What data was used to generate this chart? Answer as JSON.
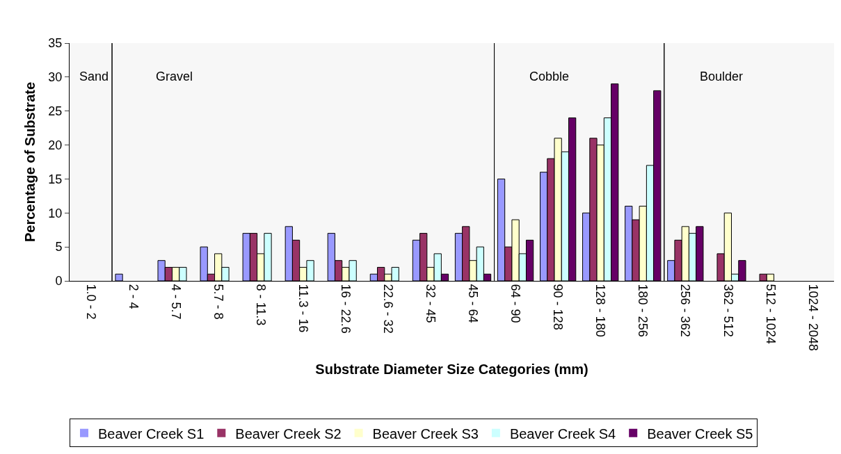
{
  "chart_data": {
    "type": "bar",
    "xlabel": "Substrate Diameter Size Categories (mm)",
    "ylabel": "Percentage of Substrate",
    "categories": [
      "1.0 - 2",
      "2 - 4",
      "4 - 5.7",
      "5.7 - 8",
      "8 - 11.3",
      "11.3 - 16",
      "16 - 22.6",
      "22.6 - 32",
      "32 - 45",
      "45 - 64",
      "64 - 90",
      "90 - 128",
      "128 - 180",
      "180 - 256",
      "256 - 362",
      "362 - 512",
      "512 - 1024",
      "1024 - 2048"
    ],
    "series": [
      {
        "name": "Beaver Creek S1",
        "color": "#9999ff",
        "values": [
          0,
          1,
          3,
          5,
          7,
          8,
          7,
          1,
          6,
          7,
          15,
          16,
          10,
          11,
          3,
          0,
          0,
          0
        ]
      },
      {
        "name": "Beaver Creek S2",
        "color": "#993366",
        "values": [
          0,
          0,
          2,
          1,
          7,
          6,
          3,
          2,
          7,
          8,
          5,
          18,
          21,
          9,
          6,
          4,
          1,
          0
        ]
      },
      {
        "name": "Beaver Creek S3",
        "color": "#ffffcc",
        "values": [
          0,
          0,
          2,
          4,
          4,
          2,
          2,
          1,
          2,
          3,
          9,
          21,
          20,
          11,
          8,
          10,
          1,
          0
        ]
      },
      {
        "name": "Beaver Creek S4",
        "color": "#ccffff",
        "values": [
          0,
          0,
          2,
          2,
          7,
          3,
          3,
          2,
          4,
          5,
          4,
          19,
          24,
          17,
          7,
          1,
          0,
          0
        ]
      },
      {
        "name": "Beaver Creek S5",
        "color": "#660066",
        "values": [
          0,
          0,
          0,
          0,
          0,
          0,
          0,
          0,
          1,
          1,
          6,
          24,
          29,
          28,
          8,
          3,
          0,
          0
        ]
      }
    ],
    "bands": [
      {
        "axis": "x",
        "from": "1.0 - 2",
        "to": "1.0 - 2",
        "label": "Sand",
        "color": "#f7f7f7"
      },
      {
        "axis": "x",
        "from": "2 - 4",
        "to": "45 - 64",
        "label": "Gravel",
        "color": "#f7f7f7"
      },
      {
        "axis": "x",
        "from": "64 - 90",
        "to": "180 - 256",
        "label": "Cobble",
        "color": "#f7f7f7"
      },
      {
        "axis": "x",
        "from": "256 - 362",
        "to": "1024 - 2048",
        "label": "Boulder",
        "color": "#f7f7f7"
      }
    ],
    "ylim": [
      0,
      35
    ],
    "yticks": [
      0,
      5,
      10,
      15,
      20,
      25,
      30,
      35
    ],
    "grid": false,
    "legend": "bottom"
  }
}
